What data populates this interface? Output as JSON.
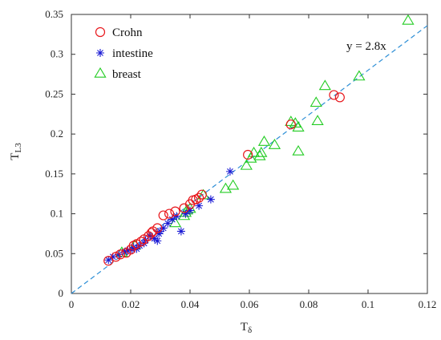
{
  "chart_data": {
    "type": "scatter",
    "xlabel": "T",
    "xlabel_sub": "δ",
    "ylabel": "T",
    "ylabel_sub": "L3",
    "xlim": [
      0,
      0.12
    ],
    "ylim": [
      0,
      0.35
    ],
    "x_ticks": [
      0,
      0.02,
      0.04,
      0.06,
      0.08,
      0.1,
      0.12
    ],
    "x_tick_labels": [
      "0",
      "0.02",
      "0.04",
      "0.06",
      "0.08",
      "0.1",
      "0.12"
    ],
    "y_ticks": [
      0,
      0.05,
      0.1,
      0.15,
      0.2,
      0.25,
      0.3,
      0.35
    ],
    "y_tick_labels": [
      "0",
      "0.05",
      "0.1",
      "0.15",
      "0.2",
      "0.25",
      "0.3",
      "0.35"
    ],
    "grid": false,
    "legend_position": "top-left",
    "colors": {
      "crohn": "#e8171c",
      "intestine": "#1a1ad4",
      "breast": "#22cc22",
      "fit": "#2e8fd6"
    },
    "fit_line": {
      "slope": 2.8,
      "label": "y = 2.8x",
      "x_range": [
        0,
        0.125
      ]
    },
    "series": [
      {
        "name": "Crohn",
        "marker": "circle",
        "points": [
          [
            0.0125,
            0.041
          ],
          [
            0.015,
            0.046
          ],
          [
            0.0165,
            0.049
          ],
          [
            0.0185,
            0.051
          ],
          [
            0.02,
            0.055
          ],
          [
            0.021,
            0.06
          ],
          [
            0.022,
            0.062
          ],
          [
            0.0235,
            0.065
          ],
          [
            0.0245,
            0.068
          ],
          [
            0.026,
            0.072
          ],
          [
            0.027,
            0.076
          ],
          [
            0.0275,
            0.078
          ],
          [
            0.029,
            0.082
          ],
          [
            0.031,
            0.098
          ],
          [
            0.033,
            0.1
          ],
          [
            0.035,
            0.103
          ],
          [
            0.038,
            0.107
          ],
          [
            0.04,
            0.112
          ],
          [
            0.041,
            0.117
          ],
          [
            0.042,
            0.118
          ],
          [
            0.043,
            0.12
          ],
          [
            0.044,
            0.124
          ],
          [
            0.0595,
            0.174
          ],
          [
            0.074,
            0.212
          ],
          [
            0.0885,
            0.249
          ],
          [
            0.0905,
            0.246
          ]
        ]
      },
      {
        "name": "intestine",
        "marker": "star",
        "points": [
          [
            0.0125,
            0.042
          ],
          [
            0.014,
            0.046
          ],
          [
            0.016,
            0.049
          ],
          [
            0.018,
            0.052
          ],
          [
            0.019,
            0.054
          ],
          [
            0.0205,
            0.055
          ],
          [
            0.021,
            0.058
          ],
          [
            0.022,
            0.056
          ],
          [
            0.023,
            0.06
          ],
          [
            0.0245,
            0.063
          ],
          [
            0.025,
            0.067
          ],
          [
            0.0265,
            0.072
          ],
          [
            0.028,
            0.069
          ],
          [
            0.029,
            0.066
          ],
          [
            0.0295,
            0.075
          ],
          [
            0.03,
            0.078
          ],
          [
            0.031,
            0.082
          ],
          [
            0.0325,
            0.088
          ],
          [
            0.034,
            0.093
          ],
          [
            0.0355,
            0.097
          ],
          [
            0.037,
            0.078
          ],
          [
            0.0385,
            0.1
          ],
          [
            0.04,
            0.104
          ],
          [
            0.043,
            0.11
          ],
          [
            0.047,
            0.118
          ],
          [
            0.0535,
            0.153
          ]
        ]
      },
      {
        "name": "breast",
        "marker": "triangle",
        "points": [
          [
            0.017,
            0.051
          ],
          [
            0.0215,
            0.06
          ],
          [
            0.035,
            0.088
          ],
          [
            0.038,
            0.097
          ],
          [
            0.0385,
            0.101
          ],
          [
            0.039,
            0.104
          ],
          [
            0.04,
            0.106
          ],
          [
            0.0445,
            0.123
          ],
          [
            0.052,
            0.131
          ],
          [
            0.0545,
            0.135
          ],
          [
            0.059,
            0.16
          ],
          [
            0.0605,
            0.169
          ],
          [
            0.0615,
            0.176
          ],
          [
            0.0635,
            0.172
          ],
          [
            0.064,
            0.176
          ],
          [
            0.065,
            0.19
          ],
          [
            0.0685,
            0.186
          ],
          [
            0.074,
            0.215
          ],
          [
            0.0755,
            0.213
          ],
          [
            0.0765,
            0.208
          ],
          [
            0.0765,
            0.178
          ],
          [
            0.0825,
            0.239
          ],
          [
            0.083,
            0.216
          ],
          [
            0.0855,
            0.26
          ],
          [
            0.097,
            0.272
          ],
          [
            0.1135,
            0.342
          ]
        ]
      }
    ]
  }
}
